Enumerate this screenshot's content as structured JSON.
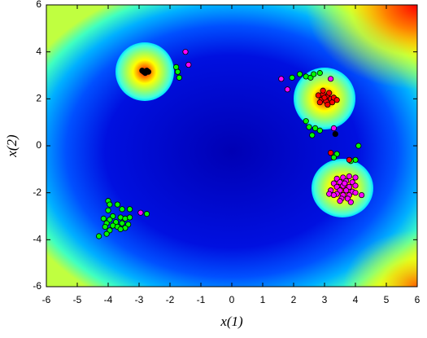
{
  "chart_data": {
    "type": "scatter",
    "xlabel": "x(1)",
    "ylabel": "x(2)",
    "xlim": [
      -6,
      6
    ],
    "ylim": [
      -6,
      6
    ],
    "xticks": [
      -6,
      -5,
      -4,
      -3,
      -2,
      -1,
      0,
      1,
      2,
      3,
      4,
      5,
      6
    ],
    "yticks": [
      -6,
      -4,
      -2,
      0,
      2,
      4,
      6
    ],
    "series": [
      {
        "color": "#00ff00",
        "x": [
          -1.8,
          -1.75,
          -1.7,
          2.2,
          2.4,
          2.55,
          1.95,
          2.65,
          2.85,
          2.4,
          2.5,
          2.7,
          2.6,
          2.85,
          4.1,
          3.4,
          3.3,
          4.0,
          3.85,
          -4.0,
          -3.95,
          -3.7,
          -3.55,
          -4.0,
          -3.3,
          -3.85,
          -3.6,
          -3.45,
          -3.3,
          -4.15,
          -3.95,
          -3.75,
          -4.05,
          -3.55,
          -3.35,
          -3.85,
          -4.1,
          -3.7,
          -3.45,
          -3.95,
          -4.05,
          -4.3,
          -3.6,
          -2.75
        ],
        "y": [
          3.35,
          3.15,
          2.9,
          3.05,
          2.95,
          2.9,
          2.9,
          3.05,
          3.1,
          1.05,
          0.8,
          0.75,
          0.45,
          0.65,
          0.0,
          -0.35,
          -0.5,
          -0.6,
          -0.65,
          -2.35,
          -2.5,
          -2.5,
          -2.7,
          -2.75,
          -2.7,
          -3.0,
          -3.05,
          -3.1,
          -3.05,
          -3.1,
          -3.15,
          -3.25,
          -3.3,
          -3.3,
          -3.35,
          -3.4,
          -3.45,
          -3.45,
          -3.5,
          -3.6,
          -3.75,
          -3.85,
          -3.55,
          -2.9
        ]
      },
      {
        "color": "#ff00ff",
        "x": [
          -1.5,
          -1.4,
          1.6,
          1.8,
          3.2,
          3.3,
          -2.95,
          3.4,
          3.6,
          3.8,
          4.0,
          3.3,
          3.5,
          3.7,
          3.9,
          3.4,
          3.6,
          3.8,
          4.0,
          3.5,
          3.7,
          3.9,
          3.4,
          3.6,
          3.8,
          4.0,
          3.2,
          3.15,
          3.55,
          3.75,
          4.2,
          3.5,
          3.85,
          3.3,
          3.65
        ],
        "y": [
          4.0,
          3.45,
          2.85,
          2.4,
          2.85,
          0.75,
          -2.85,
          -1.4,
          -1.35,
          -1.3,
          -1.35,
          -1.6,
          -1.55,
          -1.5,
          -1.55,
          -1.75,
          -1.7,
          -1.75,
          -1.7,
          -1.9,
          -1.9,
          -1.95,
          -2.05,
          -2.1,
          -2.1,
          -2.0,
          -1.9,
          -2.05,
          -2.25,
          -2.25,
          -2.1,
          -2.35,
          -2.4,
          -2.1,
          -1.6
        ]
      },
      {
        "color": "#ff0000",
        "x": [
          2.8,
          2.95,
          3.1,
          3.2,
          2.9,
          3.05,
          3.25,
          2.85,
          3.0,
          3.15,
          3.3,
          3.4,
          3.1,
          2.95,
          3.2,
          3.8
        ],
        "y": [
          2.15,
          2.2,
          2.1,
          2.0,
          1.95,
          1.9,
          1.85,
          1.85,
          2.05,
          2.25,
          2.05,
          1.95,
          1.75,
          2.35,
          -0.3,
          -0.6
        ]
      },
      {
        "color": "#000000",
        "x": [
          -2.85,
          -2.75,
          -2.8,
          -2.7,
          -2.9,
          3.35
        ],
        "y": [
          3.15,
          3.2,
          3.1,
          3.15,
          3.2,
          0.5
        ]
      }
    ]
  }
}
